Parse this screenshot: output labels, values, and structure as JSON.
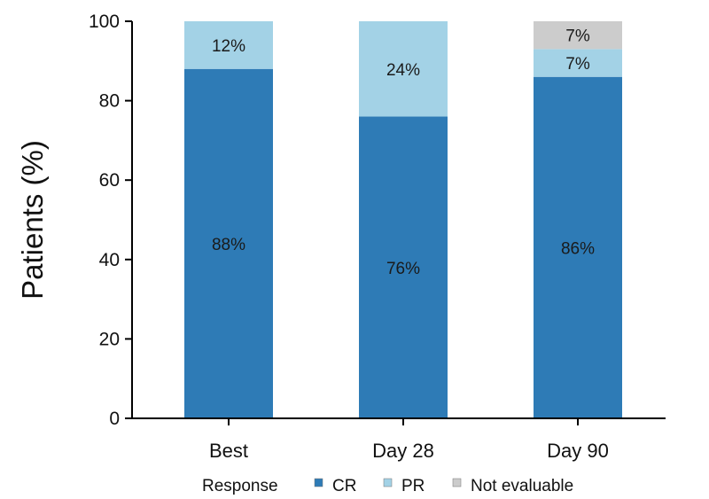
{
  "chart_data": {
    "type": "bar",
    "stacked": true,
    "categories": [
      "Best",
      "Day 28",
      "Day 90"
    ],
    "series": [
      {
        "name": "CR",
        "values": [
          88,
          76,
          86
        ],
        "labels": [
          "88%",
          "76%",
          "86%"
        ],
        "color": "#2e7bb6"
      },
      {
        "name": "PR",
        "values": [
          12,
          24,
          7
        ],
        "labels": [
          "12%",
          "24%",
          "7%"
        ],
        "color": "#a3d2e6"
      },
      {
        "name": "Not evaluable",
        "values": [
          0,
          0,
          7
        ],
        "labels": [
          "",
          "",
          "7%"
        ],
        "color": "#cccccc"
      }
    ],
    "ylabel": "Patients (%)",
    "xlabel": "",
    "ylim": [
      0,
      100
    ],
    "yticks": [
      0,
      20,
      40,
      60,
      80,
      100
    ],
    "legend": {
      "title": "Response",
      "placement": "bottom"
    },
    "grid": false
  }
}
